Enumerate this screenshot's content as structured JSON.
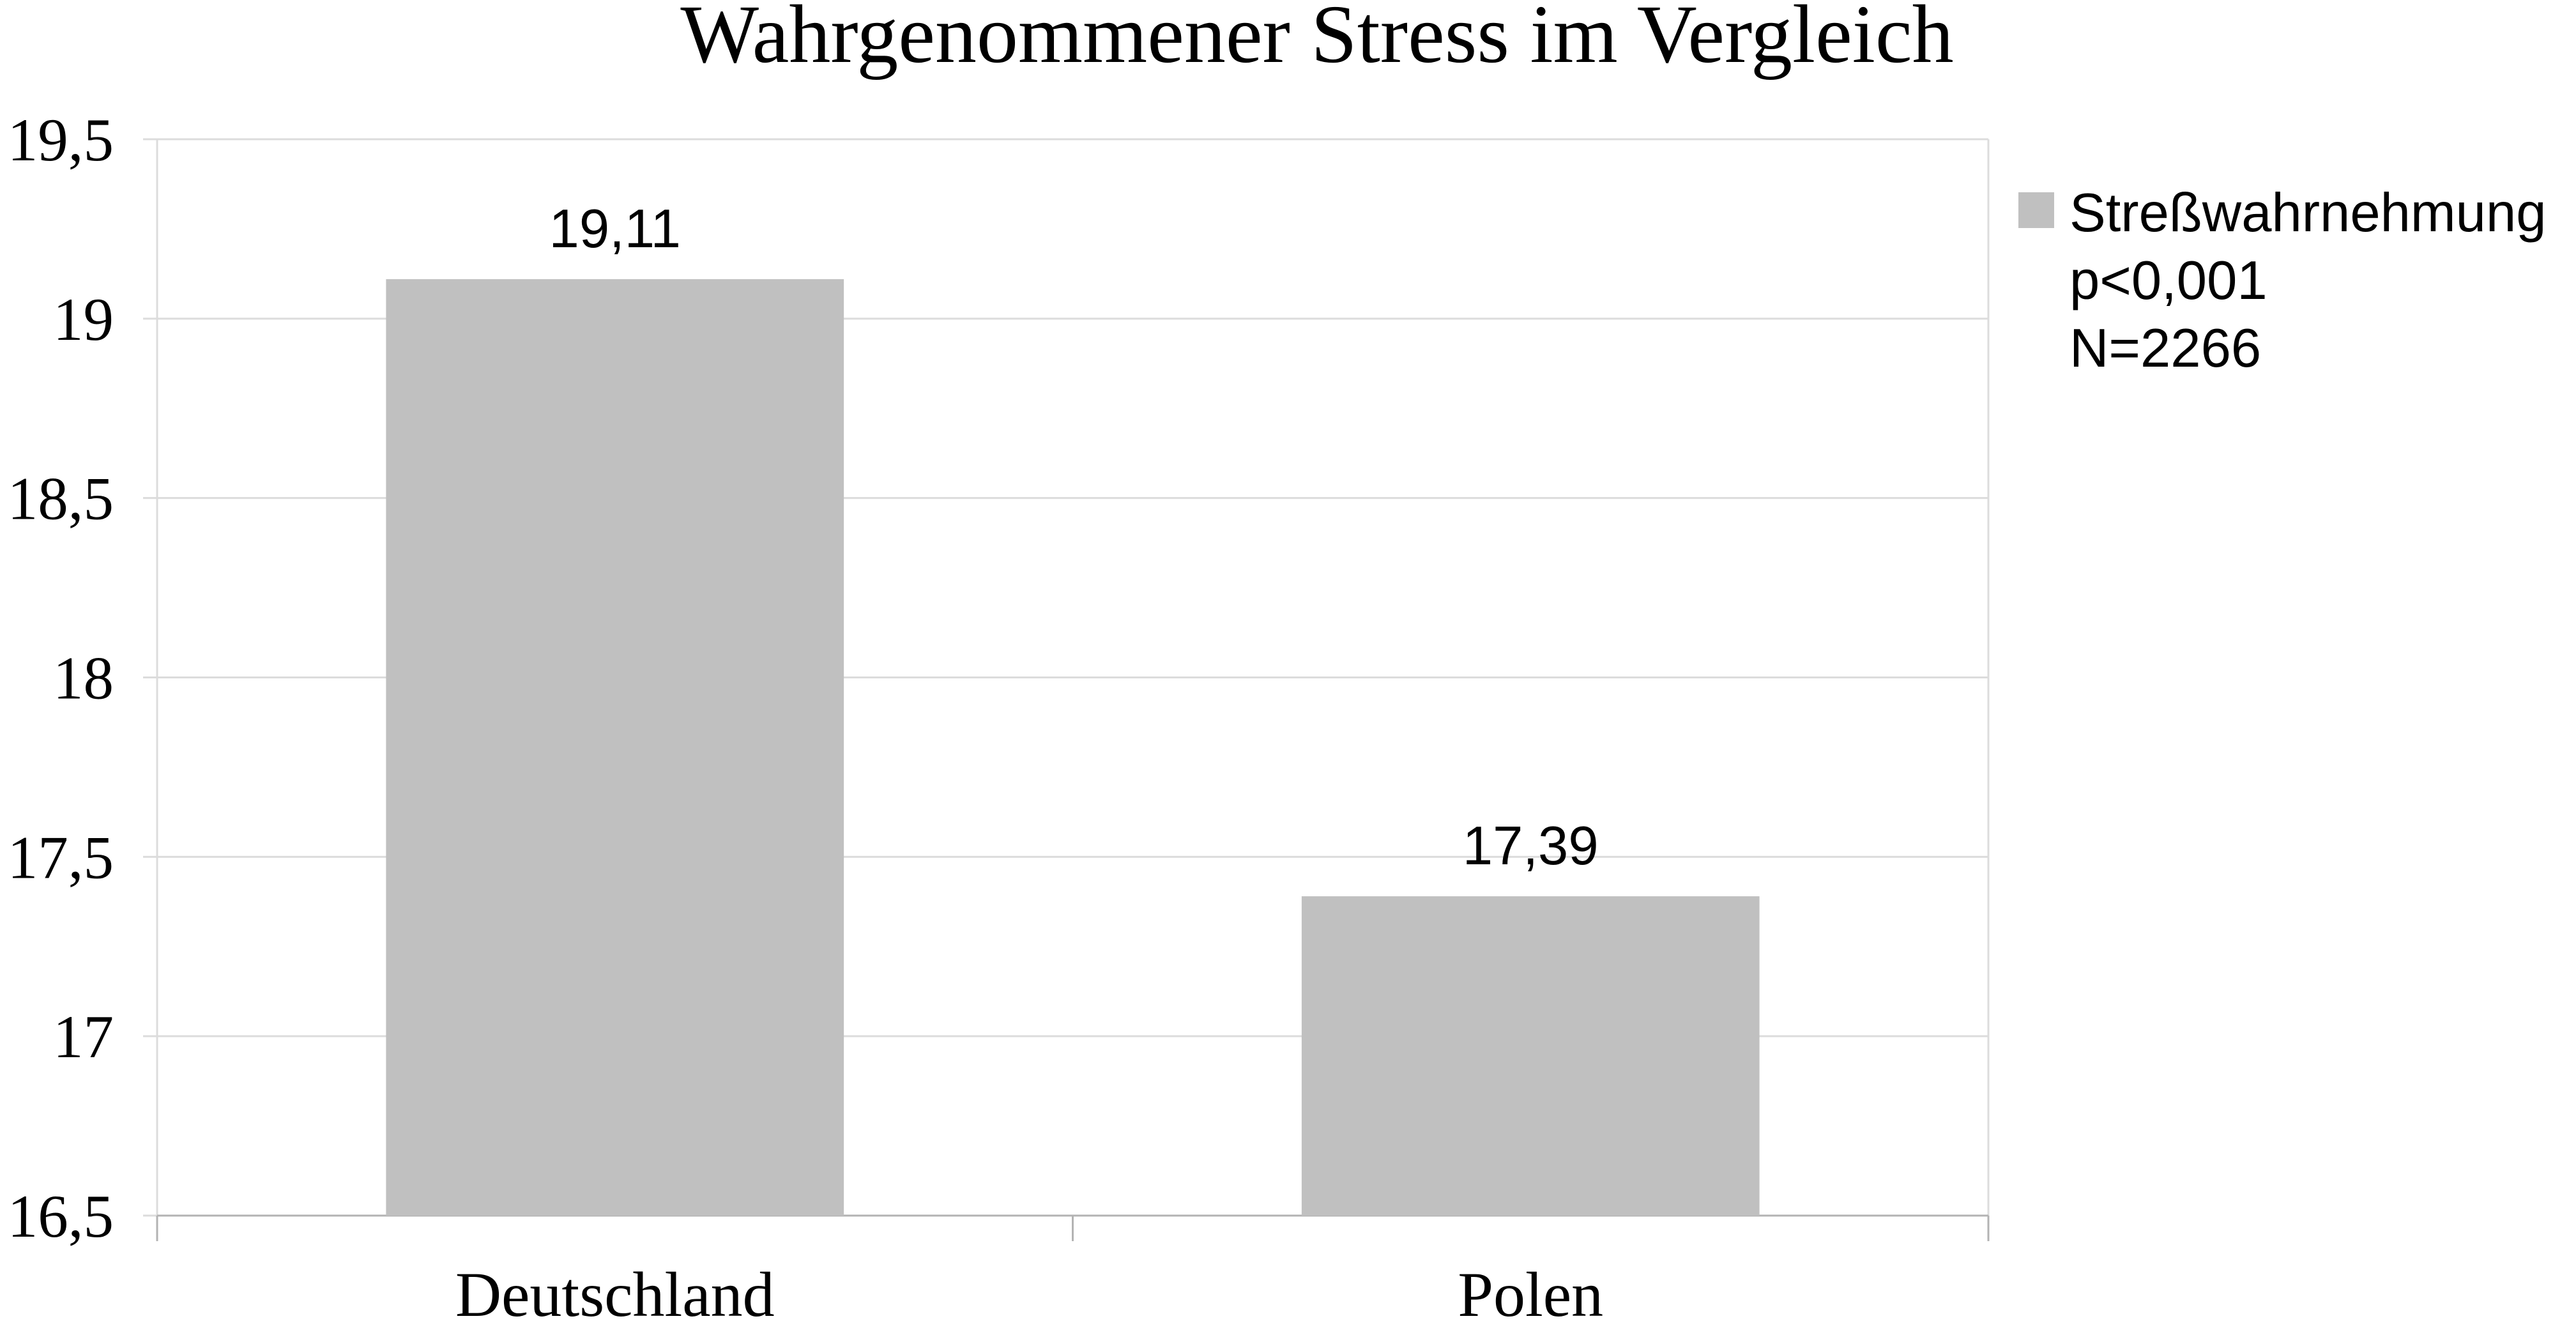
{
  "chart_data": {
    "type": "bar",
    "title": "Wahrgenommener Stress im Vergleich",
    "xlabel": "",
    "ylabel": "",
    "categories": [
      "Deutschland",
      "Polen"
    ],
    "series": [
      {
        "name": "Streßwahrnehmung",
        "values": [
          19.11,
          17.39
        ],
        "value_labels": [
          "19,11",
          "17,39"
        ],
        "color": "#c0c0c0"
      }
    ],
    "ylim": [
      16.5,
      19.5
    ],
    "yticks": [
      16.5,
      17,
      17.5,
      18,
      18.5,
      19,
      19.5
    ],
    "ytick_labels": [
      "16,5",
      "17",
      "17,5",
      "18",
      "18,5",
      "19",
      "19,5"
    ],
    "grid": true,
    "legend": {
      "position": "right",
      "lines": [
        "Streßwahrnehmung",
        "p<0,001",
        "N=2266"
      ]
    }
  }
}
